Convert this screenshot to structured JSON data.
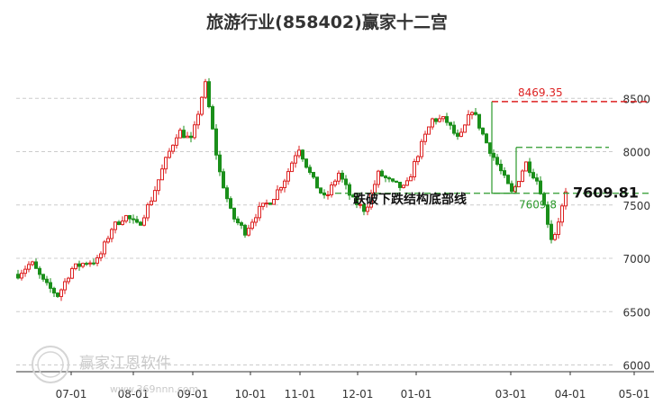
{
  "chart_data": {
    "type": "candlestick",
    "title": "旅游行业(858402)赢家十二宫",
    "x_tick_labels": [
      "07-01",
      "08-01",
      "09-01",
      "10-01",
      "11-01",
      "12-01",
      "01-01",
      "03-01",
      "04-01",
      "05-01"
    ],
    "y_tick_labels": [
      "6000",
      "6500",
      "7000",
      "7500",
      "8000",
      "8500"
    ],
    "ylim": [
      5950,
      8700
    ],
    "grid": "horizontal dashed",
    "colors": {
      "up": "#dd2222",
      "down": "#1a8f1a",
      "resistance": "#dd2222",
      "support": "#2c9a2c",
      "mid": "#2c9a2c"
    },
    "levels": {
      "resistance": {
        "value": 8469.35,
        "label": "8469.35"
      },
      "mid": {
        "value": 8040
      },
      "support": {
        "value": 7609.8,
        "label": "7609.8"
      },
      "last": {
        "value": 7609.81,
        "label": "7609.81"
      }
    },
    "annotation": "跌破下跌结构底部线",
    "series_close": [
      {
        "date": "06-17",
        "value": 6850
      },
      {
        "date": "06-24",
        "value": 6960
      },
      {
        "date": "07-01",
        "value": 6760
      },
      {
        "date": "07-08",
        "value": 6650
      },
      {
        "date": "07-15",
        "value": 6900
      },
      {
        "date": "07-22",
        "value": 6960
      },
      {
        "date": "07-29",
        "value": 6980
      },
      {
        "date": "08-05",
        "value": 7280
      },
      {
        "date": "08-12",
        "value": 7400
      },
      {
        "date": "08-19",
        "value": 7300
      },
      {
        "date": "08-26",
        "value": 7560
      },
      {
        "date": "09-02",
        "value": 7900
      },
      {
        "date": "09-09",
        "value": 8200
      },
      {
        "date": "09-16",
        "value": 8100
      },
      {
        "date": "09-23",
        "value": 8650
      },
      {
        "date": "09-30",
        "value": 7850
      },
      {
        "date": "10-07",
        "value": 7400
      },
      {
        "date": "10-14",
        "value": 7250
      },
      {
        "date": "10-21",
        "value": 7450
      },
      {
        "date": "10-28",
        "value": 7550
      },
      {
        "date": "11-04",
        "value": 7750
      },
      {
        "date": "11-11",
        "value": 8050
      },
      {
        "date": "11-18",
        "value": 7750
      },
      {
        "date": "11-25",
        "value": 7550
      },
      {
        "date": "12-02",
        "value": 7800
      },
      {
        "date": "12-09",
        "value": 7550
      },
      {
        "date": "12-16",
        "value": 7450
      },
      {
        "date": "12-23",
        "value": 7800
      },
      {
        "date": "12-30",
        "value": 7700
      },
      {
        "date": "01-06",
        "value": 7650
      },
      {
        "date": "01-13",
        "value": 8000
      },
      {
        "date": "01-20",
        "value": 8300
      },
      {
        "date": "01-27",
        "value": 8300
      },
      {
        "date": "02-03",
        "value": 8100
      },
      {
        "date": "02-10",
        "value": 8400
      },
      {
        "date": "02-17",
        "value": 8100
      },
      {
        "date": "02-24",
        "value": 7850
      },
      {
        "date": "03-03",
        "value": 7600
      },
      {
        "date": "03-10",
        "value": 7900
      },
      {
        "date": "03-17",
        "value": 7700
      },
      {
        "date": "03-24",
        "value": 7150
      },
      {
        "date": "03-31",
        "value": 7600
      }
    ]
  },
  "watermark": {
    "name": "赢家江恩软件",
    "url": "www.369nnn.com"
  }
}
